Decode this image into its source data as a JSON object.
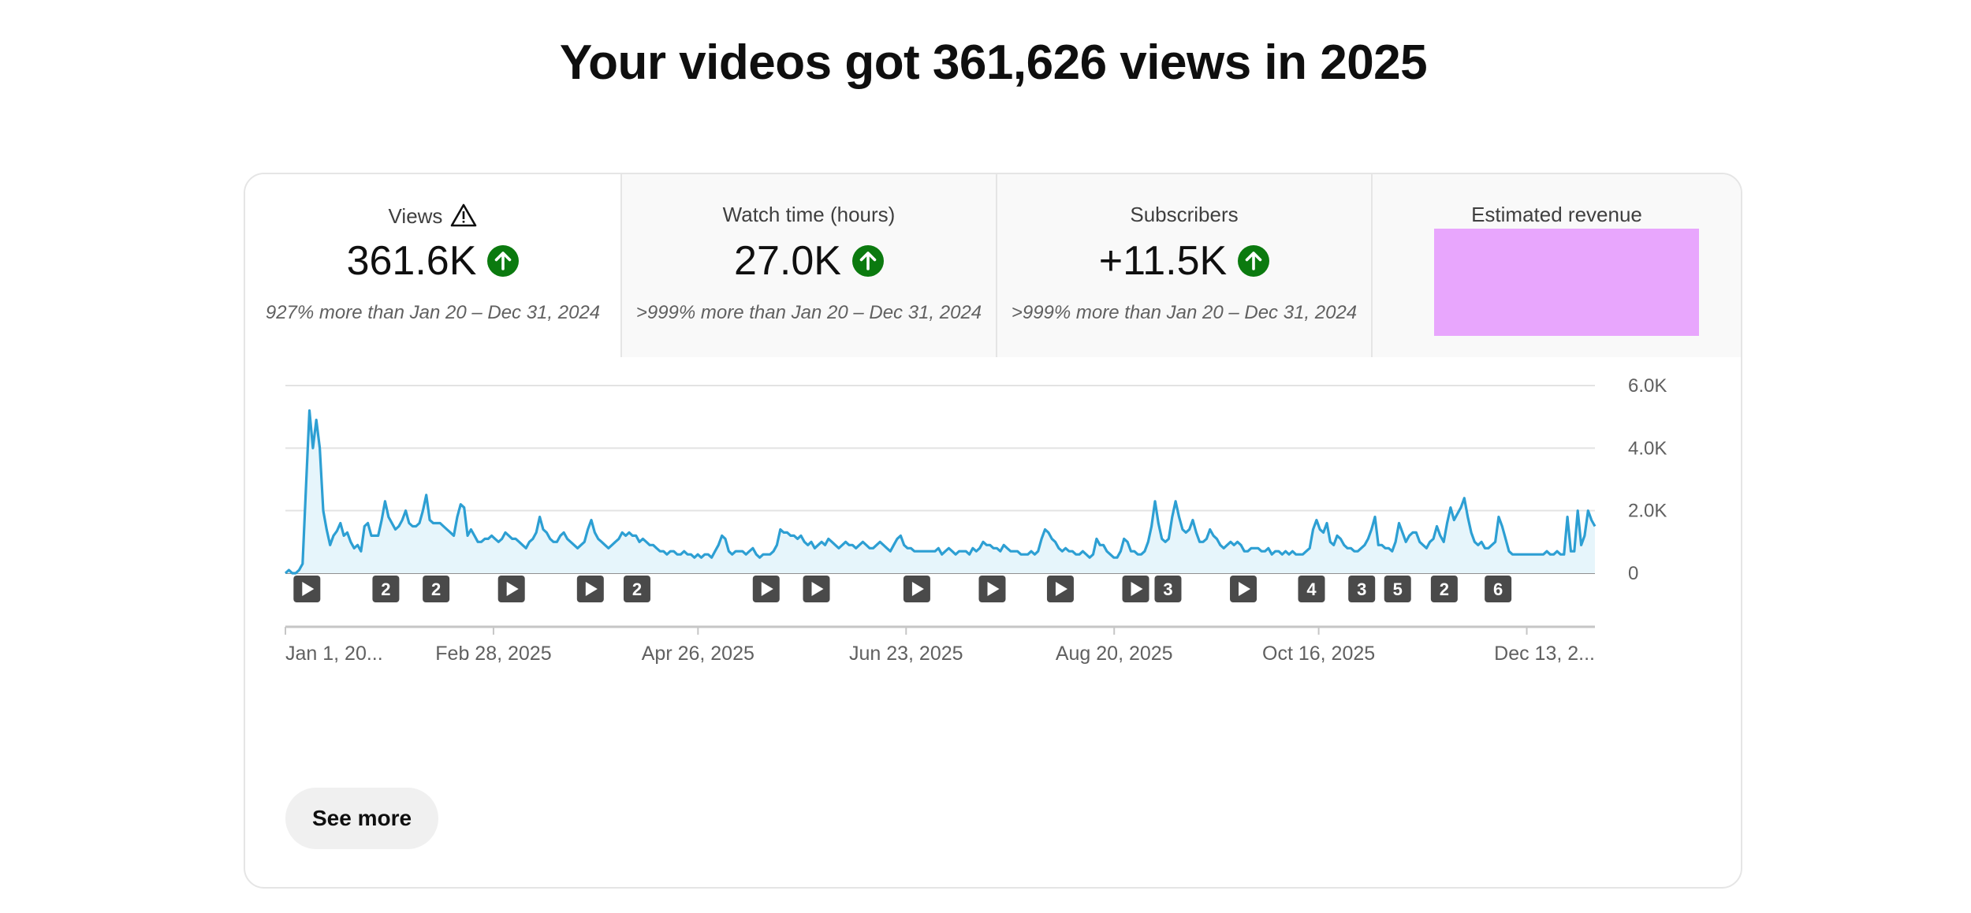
{
  "page_title": "Your videos got 361,626 views in 2025",
  "metrics": [
    {
      "label": "Views",
      "value": "361.6K",
      "trend": "up",
      "compare": "927% more than Jan 20 – Dec 31, 2024",
      "warning": true
    },
    {
      "label": "Watch time (hours)",
      "value": "27.0K",
      "trend": "up",
      "compare": ">999% more than Jan 20 – Dec 31, 2024"
    },
    {
      "label": "Subscribers",
      "value": "+11.5K",
      "trend": "up",
      "compare": ">999% more than Jan 20 – Dec 31, 2024"
    },
    {
      "label": "Estimated revenue",
      "value_redacted": true,
      "redaction_color": "#e8a6fd"
    }
  ],
  "chart_data": {
    "type": "area",
    "series": [
      {
        "values": [
          0,
          100,
          0,
          0,
          100,
          300,
          2800,
          5200,
          4000,
          4900,
          4000,
          2000,
          1400,
          900,
          1200,
          1350,
          1600,
          1200,
          1300,
          1000,
          800,
          900,
          700,
          1500,
          1600,
          1200,
          1200,
          1200,
          1700,
          2300,
          1800,
          1600,
          1400,
          1500,
          1700,
          2000,
          1600,
          1500,
          1500,
          1600,
          2000,
          2500,
          1700,
          1600,
          1600,
          1600,
          1500,
          1400,
          1300,
          1200,
          1800,
          2200,
          2100,
          1200,
          1400,
          1200,
          1000,
          1000,
          1100,
          1100,
          1200,
          1100,
          1000,
          1100,
          1300,
          1200,
          1100,
          1100,
          1000,
          900,
          800,
          1000,
          1100,
          1300,
          1800,
          1400,
          1300,
          1100,
          1000,
          1000,
          1200,
          1300,
          1100,
          1000,
          900,
          800,
          900,
          1000,
          1400,
          1700,
          1300,
          1100,
          1000,
          900,
          800,
          900,
          1000,
          1100,
          1300,
          1200,
          1300,
          1200,
          1200,
          1000,
          1100,
          1000,
          900,
          900,
          800,
          700,
          700,
          600,
          700,
          700,
          600,
          600,
          700,
          600,
          600,
          500,
          600,
          500,
          600,
          600,
          500,
          700,
          900,
          1200,
          1100,
          700,
          600,
          700,
          700,
          700,
          600,
          700,
          800,
          600,
          500,
          600,
          600,
          600,
          700,
          900,
          1400,
          1300,
          1300,
          1200,
          1200,
          1100,
          1200,
          1000,
          900,
          1000,
          800,
          900,
          1000,
          900,
          1100,
          1000,
          900,
          800,
          900,
          1000,
          900,
          900,
          800,
          900,
          1000,
          900,
          800,
          800,
          900,
          1000,
          900,
          800,
          700,
          900,
          1100,
          1200,
          900,
          800,
          800,
          700,
          700,
          700,
          700,
          700,
          700,
          700,
          800,
          600,
          700,
          800,
          700,
          600,
          700,
          700,
          700,
          600,
          800,
          700,
          800,
          1000,
          900,
          900,
          800,
          800,
          700,
          900,
          800,
          700,
          700,
          700,
          600,
          600,
          600,
          700,
          600,
          700,
          1100,
          1400,
          1300,
          1100,
          1000,
          800,
          700,
          800,
          700,
          700,
          600,
          600,
          700,
          600,
          500,
          600,
          1100,
          900,
          900,
          700,
          600,
          500,
          500,
          700,
          1100,
          1000,
          700,
          700,
          600,
          600,
          700,
          1000,
          1500,
          2300,
          1600,
          1100,
          1000,
          1100,
          1800,
          2300,
          1800,
          1400,
          1300,
          1400,
          1700,
          1300,
          1000,
          1000,
          1100,
          1400,
          1200,
          1100,
          900,
          800,
          900,
          1000,
          900,
          1000,
          900,
          700,
          700,
          800,
          800,
          800,
          700,
          700,
          800,
          600,
          700,
          700,
          600,
          700,
          600,
          700,
          600,
          600,
          600,
          700,
          800,
          1400,
          1700,
          1400,
          1300,
          1600,
          1000,
          900,
          1200,
          1100,
          900,
          800,
          800,
          700,
          700,
          800,
          900,
          1100,
          1400,
          1800,
          900,
          900,
          800,
          800,
          700,
          1000,
          1600,
          1300,
          1000,
          1200,
          1300,
          1300,
          1000,
          900,
          800,
          1000,
          1100,
          1500,
          1200,
          1000,
          1600,
          2100,
          1700,
          1900,
          2100,
          2400,
          1800,
          1300,
          1000,
          900,
          1000,
          800,
          800,
          900,
          1000,
          1800,
          1500,
          1100,
          700,
          600,
          600,
          600,
          600,
          600,
          600,
          600,
          600,
          600,
          600,
          700,
          600,
          600,
          700,
          600,
          600,
          1800,
          700,
          700,
          2000,
          900,
          1200,
          2000,
          1700,
          1500
        ]
      }
    ],
    "y_ticks": [
      "0",
      "2.0K",
      "4.0K",
      "6.0K"
    ],
    "ylim": [
      0,
      6000
    ],
    "x_tick_labels": [
      "Jan 1, 20...",
      "Feb 28, 2025",
      "Apr 26, 2025",
      "Jun 23, 2025",
      "Aug 20, 2025",
      "Oct 16, 2025",
      "Dec 13, 2..."
    ],
    "x_tick_days": [
      0,
      58,
      115,
      173,
      231,
      288,
      346
    ],
    "total_days": 365,
    "grid": true,
    "line_color": "#2d9fd3",
    "fill_color": "#e6f5fb",
    "publish_markers": [
      {
        "day": 6,
        "label": "play"
      },
      {
        "day": 28,
        "label": "2"
      },
      {
        "day": 42,
        "label": "2"
      },
      {
        "day": 63,
        "label": "play"
      },
      {
        "day": 85,
        "label": "play"
      },
      {
        "day": 98,
        "label": "2"
      },
      {
        "day": 134,
        "label": "play"
      },
      {
        "day": 148,
        "label": "play"
      },
      {
        "day": 176,
        "label": "play"
      },
      {
        "day": 197,
        "label": "play"
      },
      {
        "day": 216,
        "label": "play"
      },
      {
        "day": 237,
        "label": "play"
      },
      {
        "day": 246,
        "label": "3"
      },
      {
        "day": 267,
        "label": "play"
      },
      {
        "day": 286,
        "label": "4"
      },
      {
        "day": 300,
        "label": "3"
      },
      {
        "day": 310,
        "label": "5"
      },
      {
        "day": 323,
        "label": "2"
      },
      {
        "day": 338,
        "label": "6"
      }
    ]
  },
  "see_more_label": "See more"
}
